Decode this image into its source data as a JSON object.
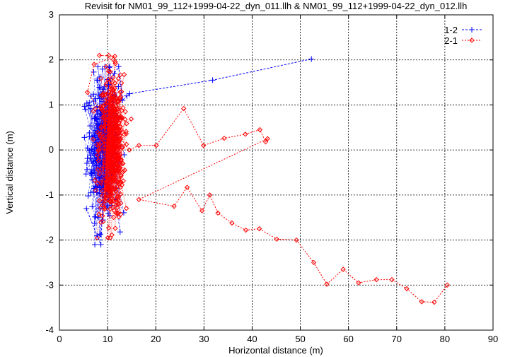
{
  "chart_data": {
    "type": "scatter",
    "title": "Revisit for NM01_99_112+1999-04-22_dyn_011.llh & NM01_99_112+1999-04-22_dyn_012.llh",
    "xlabel": "Horizontal distance (m)",
    "ylabel": "Vertical distance (m)",
    "xlim": [
      0,
      90
    ],
    "ylim": [
      -4,
      3
    ],
    "xticks": [
      0,
      10,
      20,
      30,
      40,
      50,
      60,
      70,
      80,
      90
    ],
    "yticks": [
      -4,
      -3,
      -2,
      -1,
      0,
      1,
      2,
      3
    ],
    "xtick_labels": [
      "0",
      "10",
      "20",
      "30",
      "40",
      "50",
      "60",
      "70",
      "80",
      "90"
    ],
    "ytick_labels": [
      "-4",
      "-3",
      "-2",
      "-1",
      "0",
      "1",
      "2",
      "3"
    ],
    "grid": true,
    "legend_position": "top-right",
    "series": [
      {
        "name": "1-2",
        "color": "#0000ff",
        "line_style": "dashed",
        "marker": "plus",
        "cluster": {
          "x_center": 9.0,
          "x_spread": 3.2,
          "y_center": 0.1,
          "y_spread": 0.75,
          "count": 320,
          "x_min": 5.2,
          "x_max": 15.0,
          "y_min": -2.1,
          "y_max": 1.85
        },
        "x": [
          5.6,
          7.8,
          8.6,
          10.2,
          11.4,
          12.3,
          13.1,
          14.0,
          14.6,
          31.8,
          52.3
        ],
        "y": [
          -1.3,
          -1.9,
          -2.1,
          1.45,
          1.7,
          1.85,
          1.1,
          1.2,
          1.25,
          1.55,
          2.02
        ]
      },
      {
        "name": "2-1",
        "color": "#ff0000",
        "line_style": "dotted",
        "marker": "diamond",
        "cluster": {
          "x_center": 10.8,
          "x_spread": 2.6,
          "y_center": 0.05,
          "y_spread": 0.8,
          "count": 520,
          "x_min": 5.5,
          "x_max": 16.5,
          "y_min": -1.95,
          "y_max": 2.1
        },
        "x": [
          8.3,
          11.5,
          7.2,
          5.8,
          14.5,
          16.5,
          20.1,
          25.8,
          29.9,
          34.2,
          38.6,
          41.6,
          42.8,
          43.2,
          16.5,
          23.8,
          26.5,
          29.6,
          31.2,
          32.9,
          35.8,
          38.7,
          41.5,
          45.1,
          49.2,
          52.8,
          55.5,
          58.9,
          62.1,
          65.8,
          69.0,
          72.1,
          75.2,
          77.8,
          80.5
        ],
        "y": [
          2.1,
          2.08,
          1.9,
          1.28,
          0.0,
          0.1,
          0.1,
          0.92,
          0.1,
          0.26,
          0.35,
          0.45,
          0.18,
          0.25,
          -1.1,
          -1.25,
          -0.83,
          -1.35,
          -1.0,
          -1.4,
          -1.62,
          -1.78,
          -1.75,
          -1.98,
          -2.0,
          -2.5,
          -2.98,
          -2.65,
          -2.95,
          -2.88,
          -2.88,
          -3.08,
          -3.37,
          -3.38,
          -3.0
        ]
      }
    ]
  }
}
